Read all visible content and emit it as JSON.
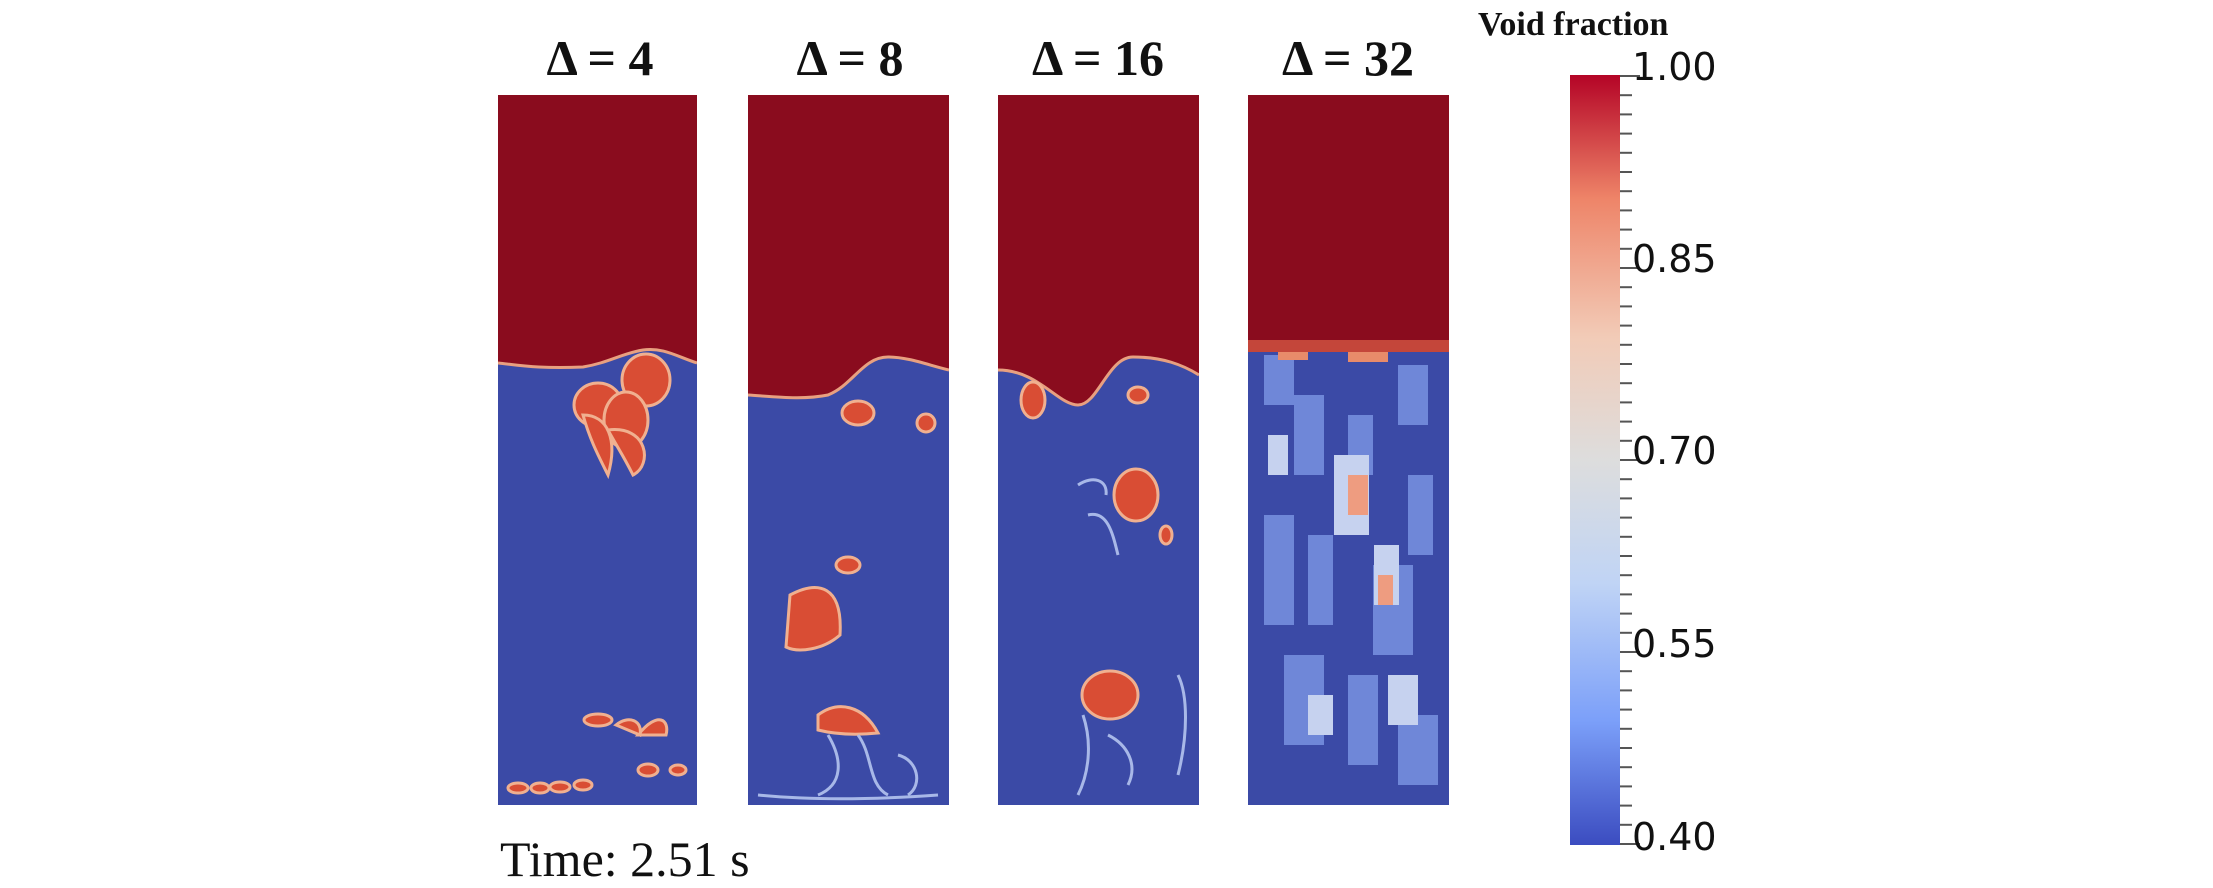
{
  "panels": [
    {
      "title": "Δ = 4"
    },
    {
      "title": "Δ = 8"
    },
    {
      "title": "Δ = 16"
    },
    {
      "title": "Δ = 32"
    }
  ],
  "time_label": "Time: 2.51 s",
  "colorbar": {
    "title": "Void fraction",
    "min": 0.4,
    "max": 1.0,
    "tick_labels": [
      "1.00",
      "0.85",
      "0.70",
      "0.55",
      "0.40"
    ],
    "colors": {
      "low": "#3b4cc0",
      "mid": "#dddddd",
      "high": "#b40426",
      "gas": "#8a0c1e",
      "bed": "#3b4aa6",
      "bubble": "#d94d34"
    }
  }
}
